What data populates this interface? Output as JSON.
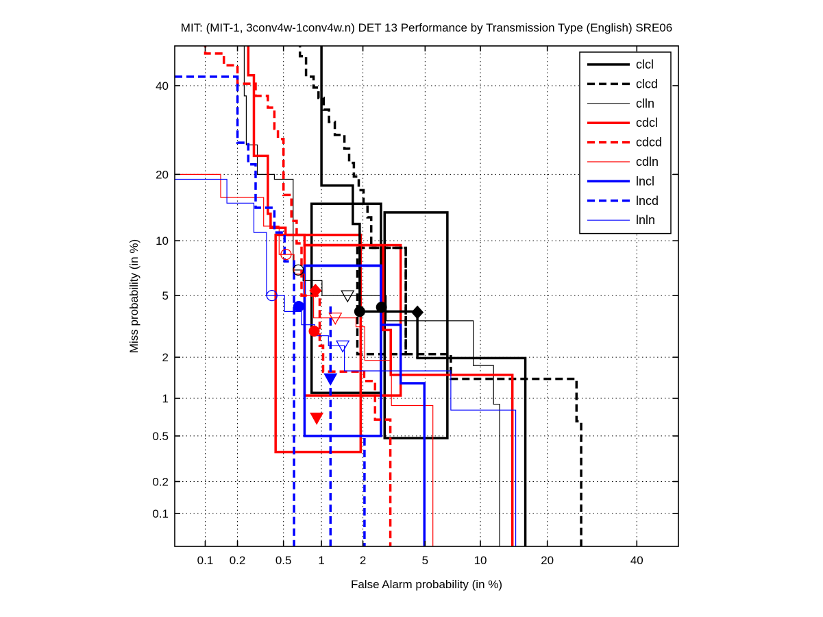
{
  "chart_data": {
    "type": "line",
    "variant": "DET-curve-step-plot",
    "title": "MIT: (MIT-1, 3conv4w-1conv4w.n) DET 13 Performance by Transmission Type (English) SRE06",
    "xlabel": "False Alarm probability (in %)",
    "ylabel": "Miss probability (in %)",
    "scale": "normal-deviate (probit) on both axes",
    "x_ticks": [
      0.1,
      0.2,
      0.5,
      1,
      2,
      5,
      10,
      20,
      40
    ],
    "y_ticks": [
      0.1,
      0.2,
      0.5,
      1,
      2,
      5,
      10,
      20,
      40
    ],
    "xlim": [
      0.05,
      50.8
    ],
    "ylim": [
      0.047,
      50.4
    ],
    "grid": "dotted",
    "legend_position": "upper right inside axes",
    "legend_entries": [
      "clcl",
      "clcd",
      "clln",
      "cdcl",
      "cdcd",
      "cdln",
      "lncl",
      "lncd",
      "lnln"
    ],
    "colors": {
      "cl": "#000000",
      "cd": "#ff0000",
      "ln": "#0000ff"
    },
    "series": [
      {
        "name": "clcl",
        "color": "#000000",
        "width": 3.5,
        "dash": "solid",
        "points": [
          [
            1.0,
            52
          ],
          [
            1.0,
            18
          ],
          [
            1.7,
            18
          ],
          [
            1.7,
            12.1
          ],
          [
            1.9,
            12.1
          ],
          [
            1.9,
            4.0
          ],
          [
            4.5,
            4.0
          ],
          [
            4.5,
            1.97
          ],
          [
            16.2,
            1.97
          ],
          [
            16.2,
            0.04
          ]
        ]
      },
      {
        "name": "clcd",
        "color": "#000000",
        "width": 3.5,
        "dash": "dashed",
        "points": [
          [
            0.68,
            52
          ],
          [
            0.68,
            47.7
          ],
          [
            0.76,
            47.7
          ],
          [
            0.76,
            42.3
          ],
          [
            0.87,
            42.3
          ],
          [
            0.87,
            39.5
          ],
          [
            0.95,
            39.5
          ],
          [
            0.95,
            36.9
          ],
          [
            1.04,
            36.9
          ],
          [
            1.04,
            34
          ],
          [
            1.14,
            34
          ],
          [
            1.14,
            31.1
          ],
          [
            1.26,
            31.1
          ],
          [
            1.26,
            28.1
          ],
          [
            1.48,
            28.1
          ],
          [
            1.48,
            25.1
          ],
          [
            1.6,
            25.1
          ],
          [
            1.6,
            22.2
          ],
          [
            1.73,
            22.2
          ],
          [
            1.73,
            19.6
          ],
          [
            1.87,
            19.6
          ],
          [
            1.87,
            17.2
          ],
          [
            2.02,
            17.2
          ],
          [
            2.02,
            15
          ],
          [
            2.15,
            15
          ],
          [
            2.15,
            13
          ],
          [
            2.28,
            13
          ],
          [
            2.28,
            9.2
          ],
          [
            3.82,
            9.2
          ],
          [
            3.82,
            2.1
          ],
          [
            7.0,
            2.1
          ],
          [
            7.0,
            1.4
          ],
          [
            25.8,
            1.4
          ],
          [
            25.8,
            0.66
          ],
          [
            26.8,
            0.66
          ],
          [
            26.8,
            0.04
          ]
        ]
      },
      {
        "name": "clln",
        "color": "#000000",
        "width": 1.2,
        "dash": "solid",
        "points": [
          [
            0.23,
            52
          ],
          [
            0.23,
            37.4
          ],
          [
            0.24,
            37.4
          ],
          [
            0.24,
            25.9
          ],
          [
            0.3,
            25.9
          ],
          [
            0.3,
            20
          ],
          [
            0.42,
            20
          ],
          [
            0.42,
            19.1
          ],
          [
            0.6,
            19.1
          ],
          [
            0.6,
            7.0
          ],
          [
            0.72,
            7.0
          ],
          [
            0.72,
            6.1
          ],
          [
            1.01,
            6.1
          ],
          [
            1.01,
            5.0
          ],
          [
            2.87,
            5.0
          ],
          [
            2.87,
            3.5
          ],
          [
            9.2,
            3.5
          ],
          [
            9.2,
            1.75
          ],
          [
            11.6,
            1.75
          ],
          [
            11.6,
            0.9
          ],
          [
            12.4,
            0.9
          ],
          [
            12.4,
            0.04
          ]
        ]
      },
      {
        "name": "cdcl",
        "color": "#ff0000",
        "width": 3.5,
        "dash": "solid",
        "points": [
          [
            0.25,
            52
          ],
          [
            0.25,
            42.7
          ],
          [
            0.28,
            42.7
          ],
          [
            0.28,
            23.6
          ],
          [
            0.37,
            23.6
          ],
          [
            0.37,
            13.5
          ],
          [
            0.39,
            13.5
          ],
          [
            0.39,
            11.6
          ],
          [
            0.52,
            11.6
          ],
          [
            0.52,
            10.7
          ],
          [
            0.74,
            10.7
          ],
          [
            0.74,
            9.5
          ],
          [
            2.74,
            9.5
          ],
          [
            2.74,
            3.05
          ],
          [
            3.07,
            3.05
          ],
          [
            3.07,
            1.5
          ],
          [
            14.2,
            1.5
          ],
          [
            14.2,
            0.04
          ]
        ]
      },
      {
        "name": "cdcd",
        "color": "#ff0000",
        "width": 3.5,
        "dash": "dashed",
        "points": [
          [
            0.1,
            52
          ],
          [
            0.1,
            48.4
          ],
          [
            0.15,
            48.4
          ],
          [
            0.15,
            45.3
          ],
          [
            0.2,
            45.3
          ],
          [
            0.2,
            40.5
          ],
          [
            0.29,
            40.5
          ],
          [
            0.29,
            37.4
          ],
          [
            0.37,
            37.4
          ],
          [
            0.37,
            34.5
          ],
          [
            0.42,
            34.5
          ],
          [
            0.42,
            29.5
          ],
          [
            0.45,
            29.5
          ],
          [
            0.45,
            27.2
          ],
          [
            0.5,
            27.2
          ],
          [
            0.5,
            16.4
          ],
          [
            0.58,
            16.4
          ],
          [
            0.58,
            12.5
          ],
          [
            0.64,
            12.5
          ],
          [
            0.64,
            9.7
          ],
          [
            0.7,
            9.7
          ],
          [
            0.7,
            5.0
          ],
          [
            0.97,
            5.0
          ],
          [
            0.97,
            2.4
          ],
          [
            1.03,
            2.4
          ],
          [
            1.03,
            1.58
          ],
          [
            2.04,
            1.58
          ],
          [
            2.04,
            1.35
          ],
          [
            2.42,
            1.35
          ],
          [
            2.42,
            0.68
          ],
          [
            3.05,
            0.68
          ],
          [
            3.05,
            0.04
          ]
        ]
      },
      {
        "name": "cdln",
        "color": "#ff0000",
        "width": 1.2,
        "dash": "solid",
        "points": [
          [
            0.05,
            20
          ],
          [
            0.14,
            20
          ],
          [
            0.14,
            16
          ],
          [
            0.34,
            16
          ],
          [
            0.34,
            11.8
          ],
          [
            0.46,
            11.8
          ],
          [
            0.46,
            8.5
          ],
          [
            0.61,
            8.5
          ],
          [
            0.61,
            6.65
          ],
          [
            0.74,
            6.65
          ],
          [
            0.74,
            5.0
          ],
          [
            0.87,
            5.0
          ],
          [
            0.87,
            3.65
          ],
          [
            1.79,
            3.65
          ],
          [
            1.79,
            3.2
          ],
          [
            2.06,
            3.2
          ],
          [
            2.06,
            1.9
          ],
          [
            3.1,
            1.9
          ],
          [
            3.1,
            0.88
          ],
          [
            5.55,
            0.88
          ],
          [
            5.55,
            0.04
          ]
        ]
      },
      {
        "name": "lncl",
        "color": "#0000ff",
        "width": 3.5,
        "dash": "solid",
        "points": [
          [
            0.74,
            7.4
          ],
          [
            2.65,
            7.4
          ],
          [
            2.65,
            3.3
          ],
          [
            3.55,
            3.3
          ],
          [
            3.55,
            1.3
          ],
          [
            4.95,
            1.3
          ],
          [
            4.95,
            0.04
          ]
        ]
      },
      {
        "name": "lncd",
        "color": "#0000ff",
        "width": 3.5,
        "dash": "dashed",
        "points": [
          [
            0.05,
            42.3
          ],
          [
            0.2,
            42.3
          ],
          [
            0.2,
            26.4
          ],
          [
            0.25,
            26.4
          ],
          [
            0.25,
            21.9
          ],
          [
            0.29,
            21.9
          ],
          [
            0.29,
            14.4
          ],
          [
            0.42,
            14.4
          ],
          [
            0.42,
            11
          ],
          [
            0.51,
            11
          ],
          [
            0.51,
            7.8
          ],
          [
            0.61,
            7.8
          ],
          [
            0.61,
            0.04
          ]
        ],
        "extra_strands": [
          [
            [
              1.17,
              4.3
            ],
            [
              1.17,
              0.04
            ]
          ],
          [
            [
              2.05,
              0.48
            ],
            [
              2.05,
              0.04
            ]
          ]
        ]
      },
      {
        "name": "lnln",
        "color": "#0000ff",
        "width": 1.2,
        "dash": "solid",
        "points": [
          [
            0.05,
            19.1
          ],
          [
            0.16,
            19.1
          ],
          [
            0.16,
            15.1
          ],
          [
            0.28,
            15.1
          ],
          [
            0.28,
            11
          ],
          [
            0.36,
            11
          ],
          [
            0.36,
            5.0
          ],
          [
            0.51,
            5.0
          ],
          [
            0.51,
            4.0
          ],
          [
            0.7,
            4.0
          ],
          [
            0.7,
            3.3
          ],
          [
            0.89,
            3.3
          ],
          [
            0.89,
            2.8
          ],
          [
            1.13,
            2.8
          ],
          [
            1.13,
            2.4
          ],
          [
            1.48,
            2.4
          ],
          [
            1.48,
            1.6
          ],
          [
            7.0,
            1.6
          ],
          [
            7.0,
            0.81
          ],
          [
            14.7,
            0.81
          ],
          [
            14.7,
            0.04
          ]
        ]
      }
    ],
    "confidence_boxes": [
      {
        "series": "clcl",
        "dash": "solid",
        "color": "#000000",
        "width": 3.5,
        "fa": [
          0.84,
          2.65
        ],
        "miss": [
          1.1,
          15.0
        ]
      },
      {
        "series": "clcl",
        "dash": "solid",
        "color": "#000000",
        "width": 3.5,
        "fa": [
          2.8,
          6.7
        ],
        "miss": [
          0.48,
          13.7
        ]
      },
      {
        "series": "clcd",
        "dash": "dashed",
        "color": "#000000",
        "width": 3.5,
        "fa": [
          1.83,
          3.82
        ],
        "miss": [
          2.1,
          9.2
        ]
      },
      {
        "series": "cdcl",
        "dash": "solid",
        "color": "#ff0000",
        "width": 3.5,
        "fa": [
          0.43,
          1.93
        ],
        "miss": [
          0.365,
          10.7
        ]
      },
      {
        "series": "cdcl",
        "dash": "solid",
        "color": "#ff0000",
        "width": 3.5,
        "fa": [
          0.74,
          3.55
        ],
        "miss": [
          1.05,
          9.5
        ]
      },
      {
        "series": "lncl",
        "dash": "solid",
        "color": "#0000ff",
        "width": 3.5,
        "fa": [
          0.74,
          2.65
        ],
        "miss": [
          0.5,
          7.4
        ]
      }
    ],
    "markers": [
      {
        "series": "clcl",
        "shape": "circle-filled",
        "color": "#000000",
        "fa": 1.9,
        "miss": 4.0
      },
      {
        "series": "clcl",
        "shape": "diamond-filled",
        "color": "#000000",
        "fa": 4.5,
        "miss": 3.95
      },
      {
        "series": "clcd",
        "shape": "circle-filled",
        "color": "#000000",
        "fa": 2.67,
        "miss": 4.25
      },
      {
        "series": "clln",
        "shape": "circle-open",
        "color": "#000000",
        "fa": 0.66,
        "miss": 7.0
      },
      {
        "series": "clln",
        "shape": "triangle-open",
        "color": "#000000",
        "fa": 1.56,
        "miss": 5.0
      },
      {
        "series": "cdcl",
        "shape": "diamond-filled",
        "color": "#ff0000",
        "fa": 0.9,
        "miss": 5.35
      },
      {
        "series": "cdcl",
        "shape": "triangle-filled",
        "color": "#ff0000",
        "fa": 0.92,
        "miss": 0.7
      },
      {
        "series": "cdcd",
        "shape": "circle-filled",
        "color": "#ff0000",
        "fa": 0.88,
        "miss": 3.0
      },
      {
        "series": "cdln",
        "shape": "circle-open",
        "color": "#ff0000",
        "fa": 0.525,
        "miss": 8.5
      },
      {
        "series": "cdln",
        "shape": "triangle-open",
        "color": "#ff0000",
        "fa": 1.27,
        "miss": 3.65
      },
      {
        "series": "lncl",
        "shape": "circle-filled",
        "color": "#0000ff",
        "fa": 0.665,
        "miss": 4.3
      },
      {
        "series": "lncd",
        "shape": "triangle-filled",
        "color": "#0000ff",
        "fa": 1.17,
        "miss": 1.4
      },
      {
        "series": "lnln",
        "shape": "circle-open",
        "color": "#0000ff",
        "fa": 0.4,
        "miss": 5.0
      },
      {
        "series": "lnln",
        "shape": "triangle-open",
        "color": "#0000ff",
        "fa": 1.44,
        "miss": 2.4
      }
    ]
  }
}
